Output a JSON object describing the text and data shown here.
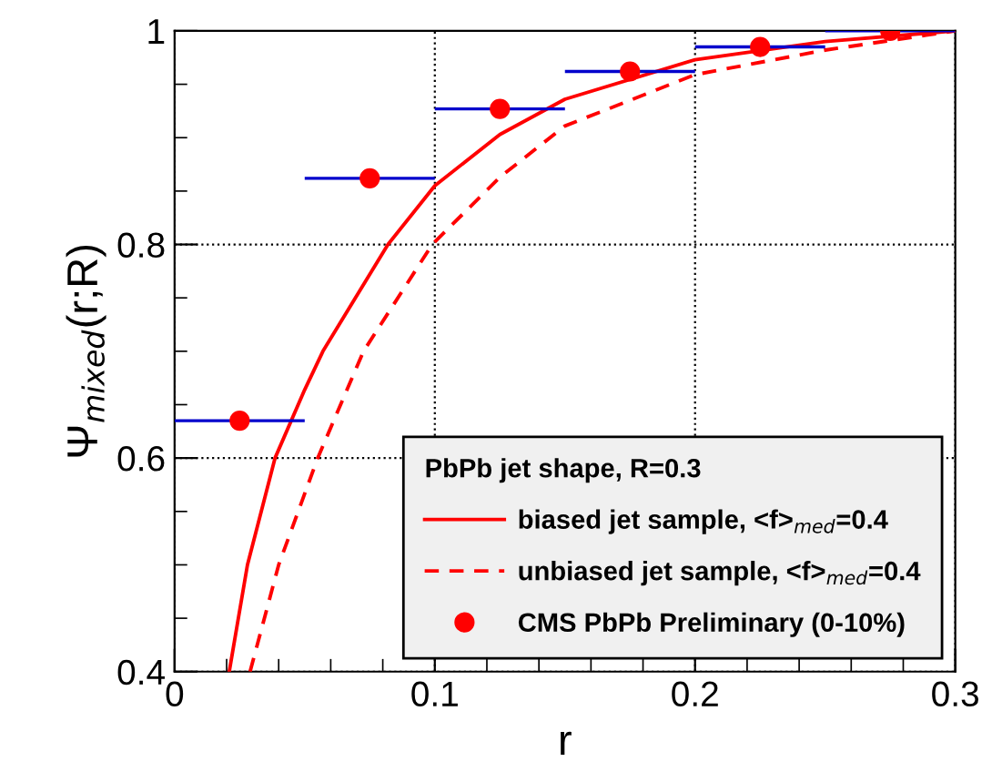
{
  "chart_data": {
    "type": "line",
    "xlabel": "r",
    "ylabel": "Ψ$_{mixed}$(r;R)",
    "legend_title": "PbPb jet shape, R=0.3",
    "xlim": [
      0,
      0.3
    ],
    "ylim": [
      0.4,
      1.0
    ],
    "xticks": [
      0,
      0.1,
      0.2,
      0.3
    ],
    "yticks": [
      0.4,
      0.6,
      0.8,
      1
    ],
    "grid": true,
    "legend": "bottom right",
    "series": [
      {
        "name": "biased jet sample, <f>$_{med}$=0.4",
        "color": "#ff0000",
        "line_style": "solid",
        "marker": "none",
        "x": [
          0.021,
          0.028,
          0.0386,
          0.05,
          0.057,
          0.082,
          0.1,
          0.125,
          0.15,
          0.2,
          0.25,
          0.3
        ],
        "values": [
          0.4,
          0.5,
          0.6,
          0.664,
          0.7,
          0.8,
          0.855,
          0.903,
          0.936,
          0.973,
          0.99,
          1.0
        ]
      },
      {
        "name": "unbiased jet sample, <f>$_{med}$=0.4",
        "color": "#ff0000",
        "line_style": "dashed",
        "marker": "none",
        "x": [
          0.029,
          0.04,
          0.055,
          0.0726,
          0.099,
          0.125,
          0.15,
          0.2,
          0.25,
          0.3
        ],
        "values": [
          0.4,
          0.5,
          0.6,
          0.7,
          0.8,
          0.863,
          0.911,
          0.959,
          0.982,
          1.0
        ]
      },
      {
        "name": "CMS PbPb Preliminary (0-10%)",
        "type": "scatter",
        "color": "#ff0000",
        "marker": "circle",
        "x": [
          0.025,
          0.075,
          0.125,
          0.175,
          0.225,
          0.275
        ],
        "values": [
          0.635,
          0.862,
          0.927,
          0.962,
          0.985,
          1.0
        ],
        "xerrors": [
          0.025,
          0.025,
          0.025,
          0.025,
          0.025,
          0.025
        ]
      }
    ]
  }
}
